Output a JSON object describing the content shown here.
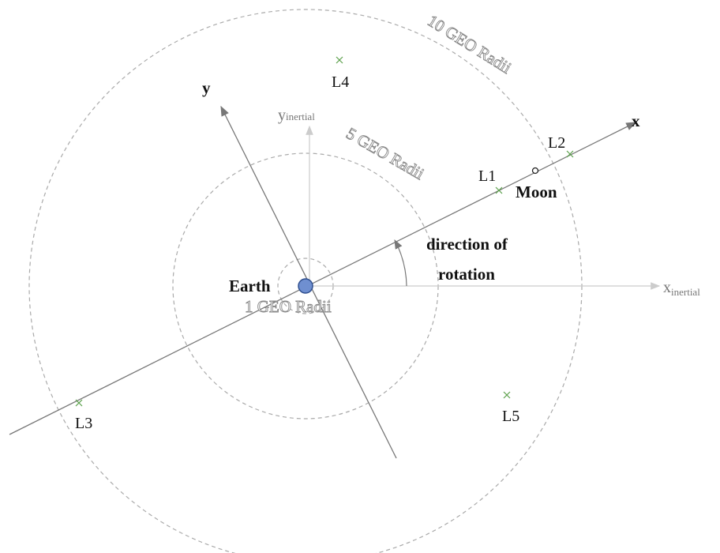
{
  "axes": {
    "x": "x",
    "y": "y",
    "x_inertial": {
      "base": "x",
      "sub": "inertial"
    },
    "y_inertial": {
      "base": "y",
      "sub": "inertial"
    }
  },
  "rings": [
    "1 GEO Radii",
    "5 GEO Radii",
    "10 GEO Radii"
  ],
  "bodies": {
    "earth": "Earth",
    "moon": "Moon"
  },
  "points": [
    "L1",
    "L2",
    "L3",
    "L4",
    "L5"
  ],
  "rotation_label": [
    "direction of",
    "rotation"
  ]
}
